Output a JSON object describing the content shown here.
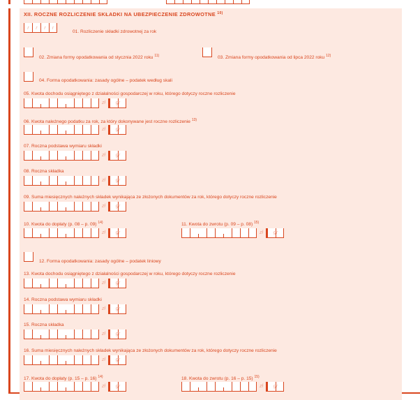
{
  "section": {
    "title": "XII. ROCZNE ROZLICZENIE SKŁADKI NA UBEZPIECZENIE ZDROWOTNE",
    "title_note": "10)"
  },
  "year_placeholder": "r",
  "units": {
    "zl": "zł",
    "gr": "gr"
  },
  "fields": {
    "f01": {
      "label": "01. Rozliczenie składki zdrowotnej za rok"
    },
    "f02": {
      "label": "02. Zmiana formy opodatkowania od stycznia 2022 roku",
      "note": "11)"
    },
    "f03": {
      "label": "03. Zmiana formy opodatkowania od lipca 2022 roku",
      "note": "12)"
    },
    "f04": {
      "label": "04. Forma opodatkowania: zasady ogólne – podatek według skali"
    },
    "f05": {
      "label": "05. Kwota dochodu osiągniętego z działalności gospodarczej w roku, którego dotyczy roczne rozliczenie"
    },
    "f06": {
      "label": "06. Kwota należnego podatku za rok, za który dokonywane jest roczne rozliczenie",
      "note": "13)"
    },
    "f07": {
      "label": "07. Roczna podstawa wymiaru składki"
    },
    "f08": {
      "label": "08. Roczna składka"
    },
    "f09": {
      "label": "09. Suma miesięcznych należnych składek wynikająca ze złożonych dokumentów za rok, którego dotyczy roczne rozliczenie"
    },
    "f10": {
      "label": "10. Kwota do dopłaty (p. 08 – p. 09)",
      "note": "14)"
    },
    "f11": {
      "label": "11. Kwota do zwrotu (p. 09 – p. 08)",
      "note": "15)"
    },
    "f12": {
      "label": "12. Forma opodatkowania: zasady ogólne – podatek liniowy"
    },
    "f13": {
      "label": "13. Kwota dochodu osiągniętego z działalności gospodarczej w roku, którego dotyczy roczne rozliczenie"
    },
    "f14": {
      "label": "14. Roczna podstawa wymiaru składki"
    },
    "f15": {
      "label": "15. Roczna składka"
    },
    "f16": {
      "label": "16. Suma miesięcznych należnych składek wynikająca ze złożonych dokumentów za rok, którego dotyczy roczne rozliczenie"
    },
    "f17": {
      "label": "17. Kwota do dopłaty (p. 15 – p. 16)",
      "note": "14)"
    },
    "f18": {
      "label": "18. Kwota do zwrotu (p. 16 – p. 15)",
      "note": "15)"
    }
  }
}
